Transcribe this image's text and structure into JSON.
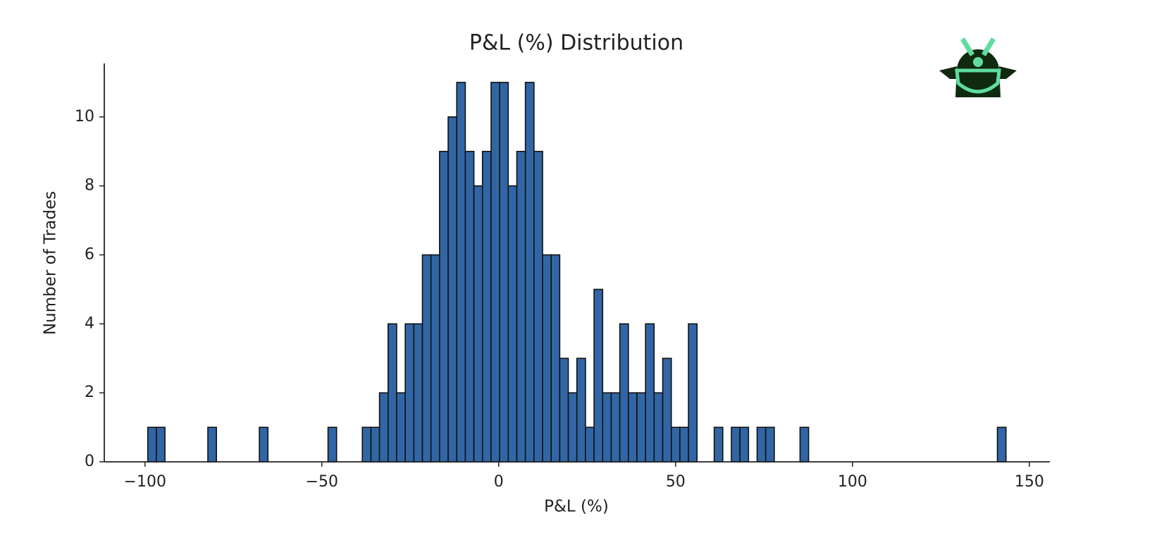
{
  "chart_data": {
    "type": "histogram",
    "title": "P&L (%) Distribution",
    "x_label": "P&L (%)",
    "y_label": "Number of Trades",
    "color": "#3166a5",
    "edgecolor": "#111111",
    "bins": [
      -99.2,
      -96.77,
      -94.35,
      -91.92,
      -89.5,
      -87.07,
      -84.64,
      -82.22,
      -79.79,
      -77.37,
      -74.94,
      -72.51,
      -70.09,
      -67.66,
      -65.24,
      -62.81,
      -60.38,
      -57.96,
      -55.53,
      -53.11,
      -50.68,
      -48.25,
      -45.83,
      -43.4,
      -40.98,
      -38.55,
      -36.12,
      -33.7,
      -31.27,
      -28.85,
      -26.42,
      -23.99,
      -21.57,
      -19.14,
      -16.72,
      -14.29,
      -11.86,
      -9.44,
      -7.01,
      -4.59,
      -2.16,
      0.27,
      2.69,
      5.12,
      7.54,
      9.97,
      12.4,
      14.82,
      17.25,
      19.67,
      22.1,
      24.53,
      26.95,
      29.38,
      31.8,
      34.23,
      36.66,
      39.08,
      41.51,
      43.93,
      46.36,
      48.79,
      51.21,
      53.64,
      56.06,
      58.49,
      60.92,
      63.34,
      65.77,
      68.19,
      70.62,
      73.05,
      75.47,
      77.9,
      80.32,
      82.75,
      85.18,
      87.6,
      90.03,
      92.45,
      94.88,
      97.31,
      99.73,
      102.16,
      104.58,
      107.01,
      109.44,
      111.86,
      114.29,
      116.71,
      119.14,
      121.57,
      123.99,
      126.42,
      128.84,
      131.27,
      133.7,
      136.12,
      138.55,
      140.97,
      143.4
    ],
    "counts": [
      1,
      1,
      0,
      0,
      0,
      0,
      0,
      1,
      0,
      0,
      0,
      0,
      0,
      1,
      0,
      0,
      0,
      0,
      0,
      0,
      0,
      1,
      0,
      0,
      0,
      1,
      1,
      2,
      4,
      2,
      4,
      4,
      6,
      6,
      9,
      10,
      11,
      9,
      8,
      9,
      11,
      11,
      8,
      9,
      11,
      9,
      6,
      6,
      3,
      2,
      3,
      1,
      5,
      2,
      2,
      4,
      2,
      2,
      4,
      2,
      3,
      1,
      1,
      4,
      0,
      0,
      1,
      0,
      1,
      1,
      0,
      1,
      1,
      0,
      0,
      0,
      1,
      0,
      0,
      0,
      0,
      0,
      0,
      0,
      0,
      0,
      0,
      0,
      0,
      0,
      0,
      0,
      0,
      0,
      0,
      0,
      0,
      0,
      0,
      1
    ],
    "xlim": [
      -111.5,
      155.8
    ],
    "ylim": [
      0,
      11.55
    ],
    "xticks": [
      {
        "value": -100,
        "label": "−100"
      },
      {
        "value": -50,
        "label": "−50"
      },
      0,
      50,
      100,
      150
    ],
    "yticks": [
      0,
      2,
      4,
      6,
      8,
      10
    ]
  }
}
